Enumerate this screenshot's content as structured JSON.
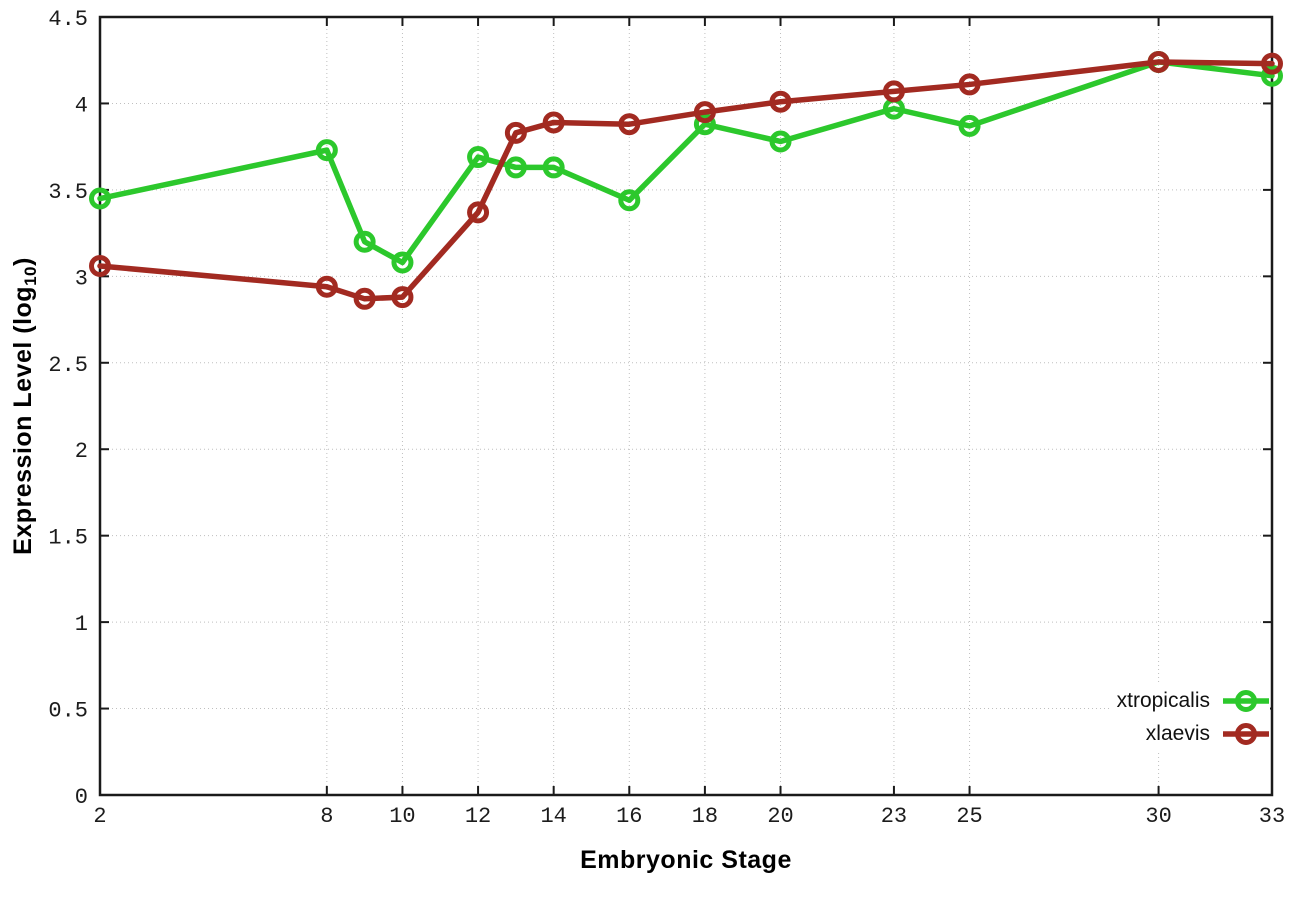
{
  "chart_data": {
    "type": "line",
    "title": "",
    "xlabel": "Embryonic Stage",
    "ylabel": "Expression Level (log10)",
    "ylabel_parts": {
      "main": "Expression Level (log",
      "sub": "10",
      "close": ")"
    },
    "xlim": [
      2,
      33
    ],
    "ylim": [
      0,
      4.5
    ],
    "x_ticks": [
      2,
      8,
      10,
      12,
      14,
      16,
      18,
      20,
      23,
      25,
      30,
      33
    ],
    "y_ticks": [
      0,
      0.5,
      1,
      1.5,
      2,
      2.5,
      3,
      3.5,
      4,
      4.5
    ],
    "grid": true,
    "grid_style": "dotted",
    "legend_position": "bottom-right-inside",
    "x": [
      2,
      8,
      9,
      10,
      12,
      13,
      14,
      16,
      18,
      20,
      23,
      25,
      30,
      33
    ],
    "series": [
      {
        "name": "xtropicalis",
        "color": "#2cc82c",
        "values": [
          3.45,
          3.73,
          3.2,
          3.08,
          3.69,
          3.63,
          3.63,
          3.44,
          3.88,
          3.78,
          3.97,
          3.87,
          4.24,
          4.16
        ]
      },
      {
        "name": "xlaevis",
        "color": "#a22a21",
        "values": [
          3.06,
          2.94,
          2.87,
          2.88,
          3.37,
          3.83,
          3.89,
          3.88,
          3.95,
          4.01,
          4.07,
          4.11,
          4.24,
          4.23
        ]
      }
    ],
    "colors": {
      "axis": "#1a1a1a",
      "grid": "#bfbfbf",
      "tick_text": "#1c1c1c"
    }
  }
}
